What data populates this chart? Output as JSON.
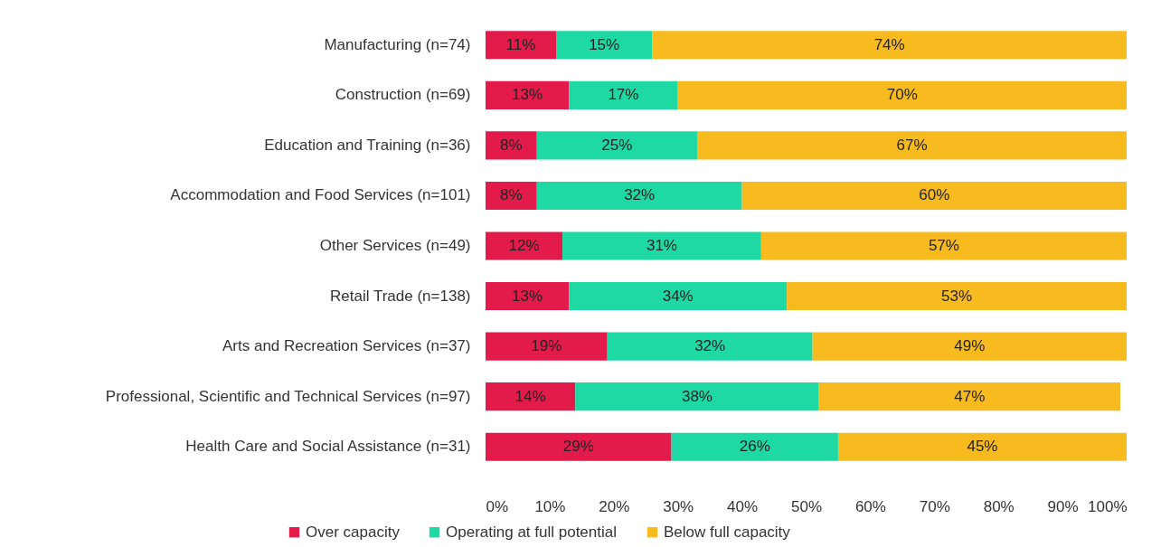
{
  "chart_data": {
    "type": "bar",
    "orientation": "horizontal",
    "stacked": true,
    "legend": "bottom",
    "grid": false,
    "categories": [
      "Manufacturing (n=74)",
      "Construction (n=69)",
      "Education and Training (n=36)",
      "Accommodation and Food Services (n=101)",
      "Other Services (n=49)",
      "Retail Trade (n=138)",
      "Arts and Recreation Services (n=37)",
      "Professional, Scientific and Technical Services (n=97)",
      "Health Care and Social Assistance (n=31)"
    ],
    "series": [
      {
        "name": "Over capacity",
        "color": "#e31b4b",
        "values": [
          11,
          13,
          8,
          8,
          12,
          13,
          19,
          14,
          29
        ],
        "value_labels": [
          "11%",
          "13%",
          "8%",
          "8%",
          "12%",
          "13%",
          "19%",
          "14%",
          "29%"
        ]
      },
      {
        "name": "Operating at full potential",
        "color": "#1ed9a4",
        "values": [
          15,
          17,
          25,
          32,
          31,
          34,
          32,
          38,
          26
        ],
        "value_labels": [
          "15%",
          "17%",
          "25%",
          "32%",
          "31%",
          "34%",
          "32%",
          "38%",
          "26%"
        ]
      },
      {
        "name": "Below full capacity",
        "color": "#f8bb1f",
        "values": [
          74,
          70,
          67,
          60,
          57,
          53,
          49,
          47,
          45
        ],
        "value_labels": [
          "74%",
          "70%",
          "67%",
          "60%",
          "57%",
          "53%",
          "49%",
          "47%",
          "45%"
        ]
      }
    ],
    "xlim": [
      0,
      100
    ],
    "xticks": [
      {
        "value": 0,
        "label": "0%"
      },
      {
        "value": 10,
        "label": "10%"
      },
      {
        "value": 20,
        "label": "20%"
      },
      {
        "value": 30,
        "label": "30%"
      },
      {
        "value": 40,
        "label": "40%"
      },
      {
        "value": 50,
        "label": "50%"
      },
      {
        "value": 60,
        "label": "60%"
      },
      {
        "value": 70,
        "label": "70%"
      },
      {
        "value": 80,
        "label": "80%"
      },
      {
        "value": 90,
        "label": "90%"
      },
      {
        "value": 100,
        "label": "100%"
      }
    ]
  }
}
